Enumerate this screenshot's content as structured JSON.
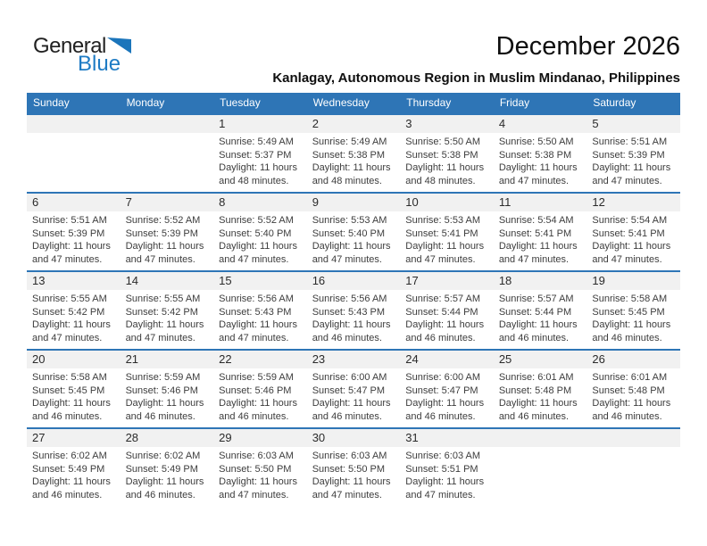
{
  "logo": {
    "word1": "General",
    "word2": "Blue"
  },
  "header": {
    "title": "December 2026",
    "subtitle": "Kanlagay, Autonomous Region in Muslim Mindanao, Philippines"
  },
  "weekdays": [
    "Sunday",
    "Monday",
    "Tuesday",
    "Wednesday",
    "Thursday",
    "Friday",
    "Saturday"
  ],
  "colors": {
    "header_blue": "#2E75B6",
    "row_line_blue": "#2E75B6",
    "day_strip_gray": "#F1F1F1",
    "logo_blue": "#1E7BC4",
    "logo_triangle_blue": "#1B75BB",
    "body_text": "#3d3d3d"
  },
  "weeks": [
    [
      null,
      null,
      {
        "day": "1",
        "sunrise": "Sunrise: 5:49 AM",
        "sunset": "Sunset: 5:37 PM",
        "daylight1": "Daylight: 11 hours",
        "daylight2": "and 48 minutes."
      },
      {
        "day": "2",
        "sunrise": "Sunrise: 5:49 AM",
        "sunset": "Sunset: 5:38 PM",
        "daylight1": "Daylight: 11 hours",
        "daylight2": "and 48 minutes."
      },
      {
        "day": "3",
        "sunrise": "Sunrise: 5:50 AM",
        "sunset": "Sunset: 5:38 PM",
        "daylight1": "Daylight: 11 hours",
        "daylight2": "and 48 minutes."
      },
      {
        "day": "4",
        "sunrise": "Sunrise: 5:50 AM",
        "sunset": "Sunset: 5:38 PM",
        "daylight1": "Daylight: 11 hours",
        "daylight2": "and 47 minutes."
      },
      {
        "day": "5",
        "sunrise": "Sunrise: 5:51 AM",
        "sunset": "Sunset: 5:39 PM",
        "daylight1": "Daylight: 11 hours",
        "daylight2": "and 47 minutes."
      }
    ],
    [
      {
        "day": "6",
        "sunrise": "Sunrise: 5:51 AM",
        "sunset": "Sunset: 5:39 PM",
        "daylight1": "Daylight: 11 hours",
        "daylight2": "and 47 minutes."
      },
      {
        "day": "7",
        "sunrise": "Sunrise: 5:52 AM",
        "sunset": "Sunset: 5:39 PM",
        "daylight1": "Daylight: 11 hours",
        "daylight2": "and 47 minutes."
      },
      {
        "day": "8",
        "sunrise": "Sunrise: 5:52 AM",
        "sunset": "Sunset: 5:40 PM",
        "daylight1": "Daylight: 11 hours",
        "daylight2": "and 47 minutes."
      },
      {
        "day": "9",
        "sunrise": "Sunrise: 5:53 AM",
        "sunset": "Sunset: 5:40 PM",
        "daylight1": "Daylight: 11 hours",
        "daylight2": "and 47 minutes."
      },
      {
        "day": "10",
        "sunrise": "Sunrise: 5:53 AM",
        "sunset": "Sunset: 5:41 PM",
        "daylight1": "Daylight: 11 hours",
        "daylight2": "and 47 minutes."
      },
      {
        "day": "11",
        "sunrise": "Sunrise: 5:54 AM",
        "sunset": "Sunset: 5:41 PM",
        "daylight1": "Daylight: 11 hours",
        "daylight2": "and 47 minutes."
      },
      {
        "day": "12",
        "sunrise": "Sunrise: 5:54 AM",
        "sunset": "Sunset: 5:41 PM",
        "daylight1": "Daylight: 11 hours",
        "daylight2": "and 47 minutes."
      }
    ],
    [
      {
        "day": "13",
        "sunrise": "Sunrise: 5:55 AM",
        "sunset": "Sunset: 5:42 PM",
        "daylight1": "Daylight: 11 hours",
        "daylight2": "and 47 minutes."
      },
      {
        "day": "14",
        "sunrise": "Sunrise: 5:55 AM",
        "sunset": "Sunset: 5:42 PM",
        "daylight1": "Daylight: 11 hours",
        "daylight2": "and 47 minutes."
      },
      {
        "day": "15",
        "sunrise": "Sunrise: 5:56 AM",
        "sunset": "Sunset: 5:43 PM",
        "daylight1": "Daylight: 11 hours",
        "daylight2": "and 47 minutes."
      },
      {
        "day": "16",
        "sunrise": "Sunrise: 5:56 AM",
        "sunset": "Sunset: 5:43 PM",
        "daylight1": "Daylight: 11 hours",
        "daylight2": "and 46 minutes."
      },
      {
        "day": "17",
        "sunrise": "Sunrise: 5:57 AM",
        "sunset": "Sunset: 5:44 PM",
        "daylight1": "Daylight: 11 hours",
        "daylight2": "and 46 minutes."
      },
      {
        "day": "18",
        "sunrise": "Sunrise: 5:57 AM",
        "sunset": "Sunset: 5:44 PM",
        "daylight1": "Daylight: 11 hours",
        "daylight2": "and 46 minutes."
      },
      {
        "day": "19",
        "sunrise": "Sunrise: 5:58 AM",
        "sunset": "Sunset: 5:45 PM",
        "daylight1": "Daylight: 11 hours",
        "daylight2": "and 46 minutes."
      }
    ],
    [
      {
        "day": "20",
        "sunrise": "Sunrise: 5:58 AM",
        "sunset": "Sunset: 5:45 PM",
        "daylight1": "Daylight: 11 hours",
        "daylight2": "and 46 minutes."
      },
      {
        "day": "21",
        "sunrise": "Sunrise: 5:59 AM",
        "sunset": "Sunset: 5:46 PM",
        "daylight1": "Daylight: 11 hours",
        "daylight2": "and 46 minutes."
      },
      {
        "day": "22",
        "sunrise": "Sunrise: 5:59 AM",
        "sunset": "Sunset: 5:46 PM",
        "daylight1": "Daylight: 11 hours",
        "daylight2": "and 46 minutes."
      },
      {
        "day": "23",
        "sunrise": "Sunrise: 6:00 AM",
        "sunset": "Sunset: 5:47 PM",
        "daylight1": "Daylight: 11 hours",
        "daylight2": "and 46 minutes."
      },
      {
        "day": "24",
        "sunrise": "Sunrise: 6:00 AM",
        "sunset": "Sunset: 5:47 PM",
        "daylight1": "Daylight: 11 hours",
        "daylight2": "and 46 minutes."
      },
      {
        "day": "25",
        "sunrise": "Sunrise: 6:01 AM",
        "sunset": "Sunset: 5:48 PM",
        "daylight1": "Daylight: 11 hours",
        "daylight2": "and 46 minutes."
      },
      {
        "day": "26",
        "sunrise": "Sunrise: 6:01 AM",
        "sunset": "Sunset: 5:48 PM",
        "daylight1": "Daylight: 11 hours",
        "daylight2": "and 46 minutes."
      }
    ],
    [
      {
        "day": "27",
        "sunrise": "Sunrise: 6:02 AM",
        "sunset": "Sunset: 5:49 PM",
        "daylight1": "Daylight: 11 hours",
        "daylight2": "and 46 minutes."
      },
      {
        "day": "28",
        "sunrise": "Sunrise: 6:02 AM",
        "sunset": "Sunset: 5:49 PM",
        "daylight1": "Daylight: 11 hours",
        "daylight2": "and 46 minutes."
      },
      {
        "day": "29",
        "sunrise": "Sunrise: 6:03 AM",
        "sunset": "Sunset: 5:50 PM",
        "daylight1": "Daylight: 11 hours",
        "daylight2": "and 47 minutes."
      },
      {
        "day": "30",
        "sunrise": "Sunrise: 6:03 AM",
        "sunset": "Sunset: 5:50 PM",
        "daylight1": "Daylight: 11 hours",
        "daylight2": "and 47 minutes."
      },
      {
        "day": "31",
        "sunrise": "Sunrise: 6:03 AM",
        "sunset": "Sunset: 5:51 PM",
        "daylight1": "Daylight: 11 hours",
        "daylight2": "and 47 minutes."
      },
      null,
      null
    ]
  ]
}
